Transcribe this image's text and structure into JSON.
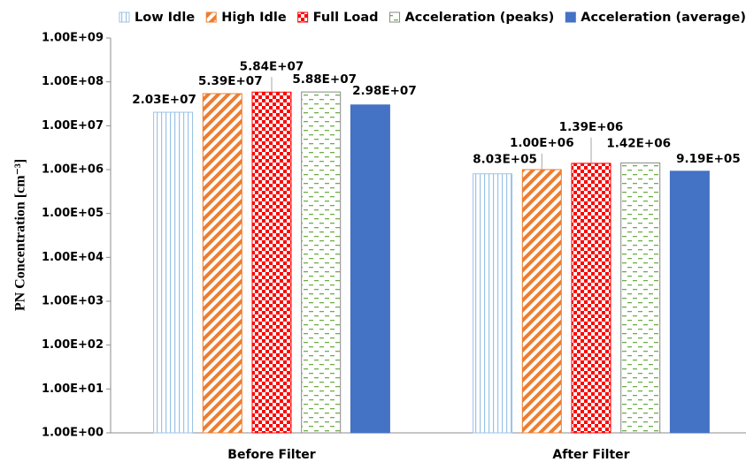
{
  "chart_data": {
    "type": "bar",
    "log_scale": true,
    "grid": false,
    "legend": "top",
    "y_label": "PN Concentration [cm⁻³]",
    "categories": [
      "Before Filter",
      "After Filter"
    ],
    "ylim": [
      1,
      1000000000
    ],
    "yticks": [
      {
        "value": 1,
        "label": "1.00E+00"
      },
      {
        "value": 10,
        "label": "1.00E+01"
      },
      {
        "value": 100,
        "label": "1.00E+02"
      },
      {
        "value": 1000,
        "label": "1.00E+03"
      },
      {
        "value": 10000,
        "label": "1.00E+04"
      },
      {
        "value": 100000,
        "label": "1.00E+05"
      },
      {
        "value": 1000000,
        "label": "1.00E+06"
      },
      {
        "value": 10000000,
        "label": "1.00E+07"
      },
      {
        "value": 100000000,
        "label": "1.00E+08"
      },
      {
        "value": 1000000000,
        "label": "1.00E+09"
      }
    ],
    "series": [
      {
        "name": "Low Idle",
        "color": "#9dc3e6",
        "pattern": "vertical",
        "values": [
          20300000,
          803000
        ],
        "value_labels": [
          "2.03E+07",
          "8.03E+05"
        ]
      },
      {
        "name": "High Idle",
        "color": "#ed7d31",
        "pattern": "diagonal",
        "values": [
          53900000,
          1000000
        ],
        "value_labels": [
          "5.39E+07",
          "1.00E+06"
        ]
      },
      {
        "name": "Full Load",
        "color": "#ff0000",
        "pattern": "checker",
        "values": [
          58400000,
          1390000
        ],
        "value_labels": [
          "5.84E+07",
          "1.39E+06"
        ]
      },
      {
        "name": "Acceleration (peaks)",
        "color": "#70ad47",
        "pattern": "dash",
        "values": [
          58800000,
          1420000
        ],
        "value_labels": [
          "5.88E+07",
          "1.42E+06"
        ]
      },
      {
        "name": "Acceleration (average)",
        "color": "#4472c4",
        "pattern": "solid",
        "values": [
          29800000,
          919000
        ],
        "value_labels": [
          "2.98E+07",
          "9.19E+05"
        ]
      }
    ]
  }
}
